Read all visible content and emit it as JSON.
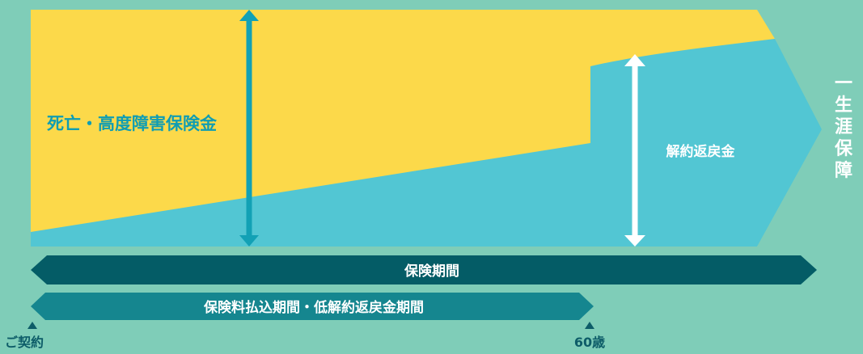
{
  "colors": {
    "background": "#7fcdb8",
    "death_benefit_area": "#fcd94a",
    "surrender_value_area": "#52c6d3",
    "death_benefit_arrow": "#12a1b5",
    "surrender_arrow": "#ffffff",
    "coverage_bar": "#045c66",
    "premium_bar": "#15868f",
    "death_label": "#0f9db3",
    "white_text": "#ffffff",
    "marker_text": "#0d5c68"
  },
  "labels": {
    "death_benefit": "死亡・高度障害保険金",
    "surrender_value": "解約返戻金",
    "lifetime": "一生涯保障",
    "coverage_period": "保険期間",
    "premium_period": "保険料払込期間・低解約返戻金期間",
    "contract_start": "ご契約",
    "age_60": "60歳"
  }
}
